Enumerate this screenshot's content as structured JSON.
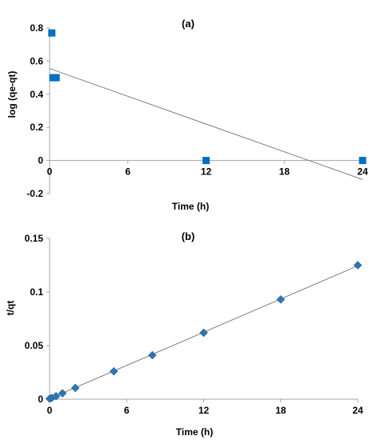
{
  "chart_data": [
    {
      "type": "scatter",
      "title": "(a)",
      "xlabel": "Time (h)",
      "ylabel": "log (qe-qt)",
      "xlim": [
        0,
        24
      ],
      "ylim": [
        -0.2,
        0.8
      ],
      "xticks": [
        0,
        6,
        12,
        18,
        24
      ],
      "yticks": [
        -0.2,
        0,
        0.2,
        0.4,
        0.6,
        0.8
      ],
      "xtick_labels": [
        "0",
        "6",
        "12",
        "18",
        "24"
      ],
      "ytick_labels": [
        "-0.2",
        "0",
        "0.2",
        "0.4",
        "0.6",
        "0.8"
      ],
      "grid": false,
      "marker": "square",
      "marker_color": "#0070c0",
      "line_color": "#7f7f7f",
      "series": [
        {
          "x": [
            0.17,
            0.25,
            0.5,
            12,
            24
          ],
          "y": [
            0.77,
            0.5,
            0.5,
            0.0,
            0.0
          ]
        }
      ],
      "trendline": {
        "x": [
          0,
          24
        ],
        "y": [
          0.555,
          -0.115
        ]
      }
    },
    {
      "type": "scatter",
      "title": "(b)",
      "xlabel": "Time (h)",
      "ylabel": "t/qt",
      "xlim": [
        0,
        24
      ],
      "ylim": [
        0,
        0.15
      ],
      "xticks": [
        0,
        6,
        12,
        18,
        24
      ],
      "yticks": [
        0,
        0.05,
        0.1,
        0.15
      ],
      "xtick_labels": [
        "0",
        "6",
        "12",
        "18",
        "24"
      ],
      "ytick_labels": [
        "0",
        "0.05",
        "0.1",
        "0.15"
      ],
      "grid": false,
      "marker": "diamond",
      "marker_color": "#2e75b6",
      "line_color": "#7f7f7f",
      "series": [
        {
          "x": [
            0,
            0.17,
            0.5,
            1,
            2,
            5,
            8,
            12,
            18,
            24
          ],
          "y": [
            0.0005,
            0.0012,
            0.0028,
            0.0055,
            0.0105,
            0.026,
            0.041,
            0.062,
            0.093,
            0.125
          ]
        }
      ],
      "trendline": {
        "x": [
          0,
          24
        ],
        "y": [
          0.0005,
          0.1245
        ]
      }
    }
  ]
}
